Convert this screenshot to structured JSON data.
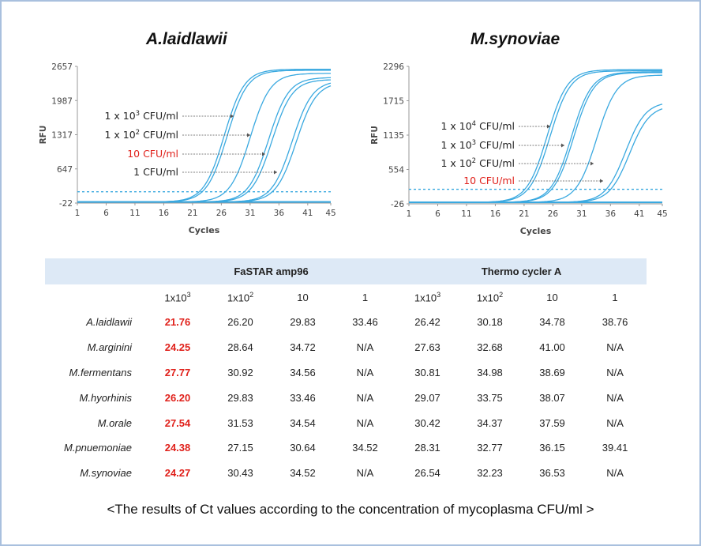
{
  "charts": [
    {
      "title": "A.laidlawii",
      "ylabel": "RFU",
      "xlabel": "Cycles",
      "yticks": [
        "2657",
        "1987",
        "1317",
        "647",
        "-22"
      ],
      "xticks": [
        "1",
        "6",
        "11",
        "16",
        "21",
        "26",
        "31",
        "36",
        "41",
        "45"
      ],
      "annotations": [
        {
          "base": "1 x 10",
          "sup": "3",
          "unit": " CFU/ml",
          "red": false
        },
        {
          "base": "1 x 10",
          "sup": "2",
          "unit": " CFU/ml",
          "red": false
        },
        {
          "base": "10",
          "sup": "",
          "unit": " CFU/ml",
          "red": true
        },
        {
          "base": "1",
          "sup": "",
          "unit": " CFU/ml",
          "red": false
        }
      ]
    },
    {
      "title": "M.synoviae",
      "ylabel": "RFU",
      "xlabel": "Cycles",
      "yticks": [
        "2296",
        "1715",
        "1135",
        "554",
        "-26"
      ],
      "xticks": [
        "1",
        "6",
        "11",
        "16",
        "21",
        "26",
        "31",
        "36",
        "41",
        "45"
      ],
      "annotations": [
        {
          "base": "1 x 10",
          "sup": "4",
          "unit": " CFU/ml",
          "red": false
        },
        {
          "base": "1 x 10",
          "sup": "3",
          "unit": " CFU/ml",
          "red": false
        },
        {
          "base": "1 x 10",
          "sup": "2",
          "unit": " CFU/ml",
          "red": false
        },
        {
          "base": "10",
          "sup": "",
          "unit": " CFU/ml",
          "red": true
        }
      ]
    }
  ],
  "chart_data": [
    {
      "type": "line",
      "title": "A.laidlawii",
      "xlabel": "Cycles",
      "ylabel": "RFU",
      "xlim": [
        1,
        45
      ],
      "ylim": [
        -22,
        2657
      ],
      "threshold": 200,
      "series": [
        {
          "name": "1 x 10^3 CFU/ml",
          "midpoint": 26.5,
          "plateau": 2600
        },
        {
          "name": "1 x 10^3 CFU/ml",
          "midpoint": 27.0,
          "plateau": 2580
        },
        {
          "name": "1 x 10^2 CFU/ml",
          "midpoint": 31.0,
          "plateau": 2520
        },
        {
          "name": "10 CFU/ml",
          "midpoint": 34.2,
          "plateau": 2440
        },
        {
          "name": "10 CFU/ml",
          "midpoint": 34.8,
          "plateau": 2400
        },
        {
          "name": "1 CFU/ml",
          "midpoint": 38.3,
          "plateau": 2380
        },
        {
          "name": "1 CFU/ml",
          "midpoint": 39.0,
          "plateau": 2350
        }
      ]
    },
    {
      "type": "line",
      "title": "M.synoviae",
      "xlabel": "Cycles",
      "ylabel": "RFU",
      "xlim": [
        1,
        45
      ],
      "ylim": [
        -26,
        2296
      ],
      "threshold": 220,
      "series": [
        {
          "name": "1 x 10^4 CFU/ml",
          "midpoint": 25.0,
          "plateau": 2240
        },
        {
          "name": "1 x 10^4 CFU/ml",
          "midpoint": 25.5,
          "plateau": 2220
        },
        {
          "name": "1 x 10^3 CFU/ml",
          "midpoint": 29.2,
          "plateau": 2200
        },
        {
          "name": "1 x 10^3 CFU/ml",
          "midpoint": 29.6,
          "plateau": 2190
        },
        {
          "name": "1 x 10^2 CFU/ml",
          "midpoint": 33.6,
          "plateau": 2150
        },
        {
          "name": "10 CFU/ml",
          "midpoint": 38.6,
          "plateau": 1700
        },
        {
          "name": "10 CFU/ml",
          "midpoint": 39.3,
          "plateau": 1640
        }
      ]
    }
  ],
  "table": {
    "groups": [
      "FaSTAR amp96",
      "Thermo cycler A"
    ],
    "concentrations": [
      {
        "base": "1x10",
        "sup": "3"
      },
      {
        "base": "1x10",
        "sup": "2"
      },
      {
        "base": "10",
        "sup": ""
      },
      {
        "base": "1",
        "sup": ""
      },
      {
        "base": "1x10",
        "sup": "3"
      },
      {
        "base": "1x10",
        "sup": "2"
      },
      {
        "base": "10",
        "sup": ""
      },
      {
        "base": "1",
        "sup": ""
      }
    ],
    "rows": [
      {
        "organism": "A.laidlawii",
        "values": [
          "21.76",
          "26.20",
          "29.83",
          "33.46",
          "26.42",
          "30.18",
          "34.78",
          "38.76"
        ]
      },
      {
        "organism": "M.arginini",
        "values": [
          "24.25",
          "28.64",
          "34.72",
          "N/A",
          "27.63",
          "32.68",
          "41.00",
          "N/A"
        ]
      },
      {
        "organism": "M.fermentans",
        "values": [
          "27.77",
          "30.92",
          "34.56",
          "N/A",
          "30.81",
          "34.98",
          "38.69",
          "N/A"
        ]
      },
      {
        "organism": "M.hyorhinis",
        "values": [
          "26.20",
          "29.83",
          "33.46",
          "N/A",
          "29.07",
          "33.75",
          "38.07",
          "N/A"
        ]
      },
      {
        "organism": "M.orale",
        "values": [
          "27.54",
          "31.53",
          "34.54",
          "N/A",
          "30.42",
          "34.37",
          "37.59",
          "N/A"
        ]
      },
      {
        "organism": "M.pnuemoniae",
        "values": [
          "24.38",
          "27.15",
          "30.64",
          "34.52",
          "28.31",
          "32.77",
          "36.15",
          "39.41"
        ]
      },
      {
        "organism": "M.synoviae",
        "values": [
          "24.27",
          "30.43",
          "34.52",
          "N/A",
          "26.54",
          "32.23",
          "36.53",
          "N/A"
        ]
      }
    ]
  },
  "caption": "<The results of Ct values according to the concentration of mycoplasma CFU/ml >",
  "colors": {
    "curve": "#3aa9e0",
    "threshold": "#3aa9e0",
    "highlight": "#e0211b",
    "table_header_bg": "#dde9f6",
    "frame_border": "#a9c0de"
  }
}
